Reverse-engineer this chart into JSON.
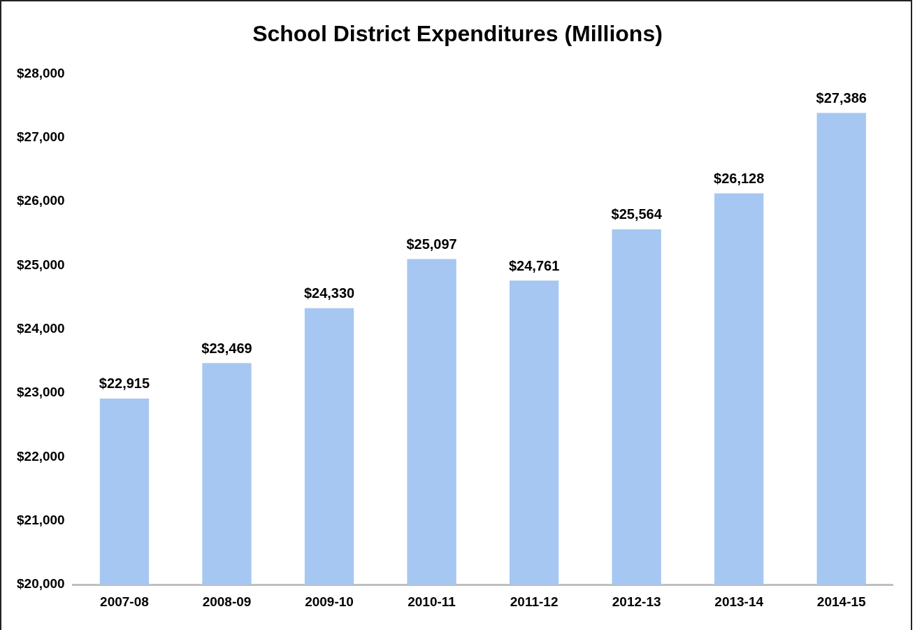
{
  "chart_data": {
    "type": "bar",
    "title": "School District Expenditures (Millions)",
    "categories": [
      "2007-08",
      "2008-09",
      "2009-10",
      "2010-11",
      "2011-12",
      "2012-13",
      "2013-14",
      "2014-15"
    ],
    "values": [
      22915,
      23469,
      24330,
      25097,
      24761,
      25564,
      26128,
      27386
    ],
    "value_labels": [
      "$22,915",
      "$23,469",
      "$24,330",
      "$25,097",
      "$24,761",
      "$25,564",
      "$26,128",
      "$27,386"
    ],
    "color": "#a6c7f1",
    "ylim": [
      20000,
      28000
    ],
    "yticks": [
      {
        "value": 20000,
        "label": "$20,000"
      },
      {
        "value": 21000,
        "label": "$21,000"
      },
      {
        "value": 22000,
        "label": "$22,000"
      },
      {
        "value": 23000,
        "label": "$23,000"
      },
      {
        "value": 24000,
        "label": "$24,000"
      },
      {
        "value": 25000,
        "label": "$25,000"
      },
      {
        "value": 26000,
        "label": "$26,000"
      },
      {
        "value": 27000,
        "label": "$27,000"
      },
      {
        "value": 28000,
        "label": "$28,000"
      }
    ],
    "grid": false,
    "legend": false
  }
}
